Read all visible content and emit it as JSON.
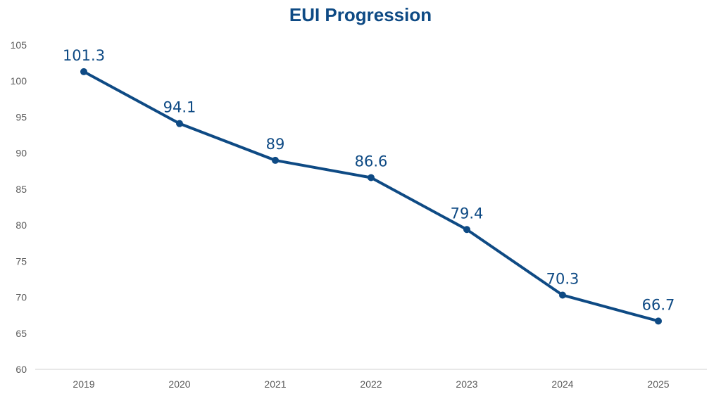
{
  "colors": {
    "series": "#0E4A84",
    "axis": "#D0D0D0",
    "tick_text": "#595959"
  },
  "chart_data": {
    "type": "line",
    "title": "EUI Progression",
    "xlabel": "",
    "ylabel": "",
    "categories": [
      "2019",
      "2020",
      "2021",
      "2022",
      "2023",
      "2024",
      "2025"
    ],
    "series": [
      {
        "values": [
          101.3,
          94.1,
          89,
          86.6,
          79.4,
          70.3,
          66.7
        ]
      }
    ],
    "data_labels": [
      "101.3",
      "94.1",
      "89",
      "86.6",
      "79.4",
      "70.3",
      "66.7"
    ],
    "ylim": [
      60,
      105
    ],
    "yticks": [
      "60",
      "65",
      "70",
      "75",
      "80",
      "85",
      "90",
      "95",
      "100",
      "105"
    ],
    "grid": false,
    "markers": true
  }
}
